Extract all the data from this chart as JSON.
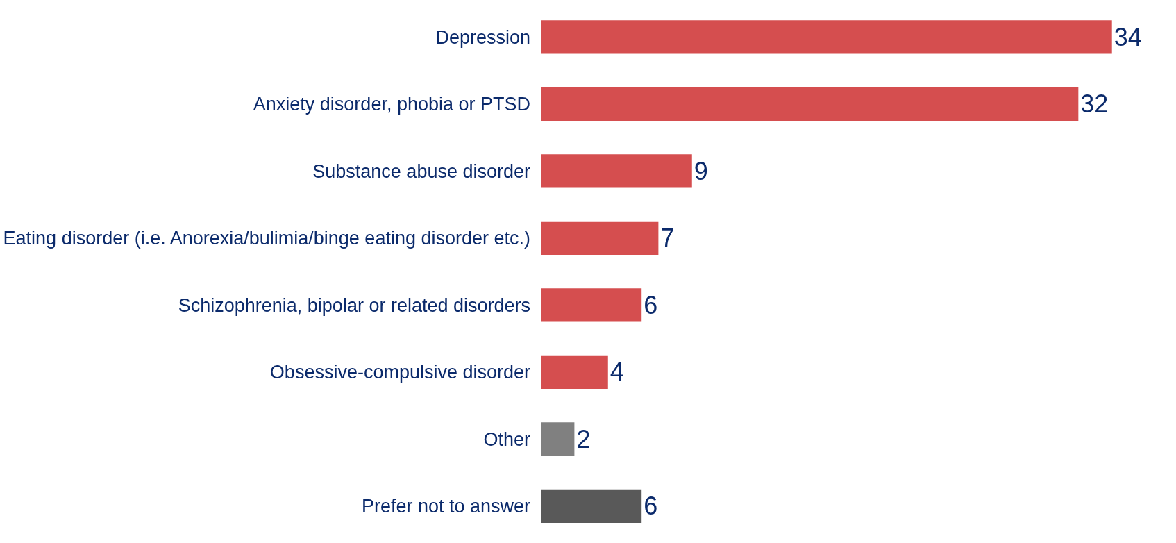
{
  "chart_data": {
    "type": "bar",
    "orientation": "horizontal",
    "categories": [
      "Depression",
      "Anxiety disorder, phobia or PTSD",
      "Substance abuse disorder",
      "Eating disorder (i.e. Anorexia/bulimia/binge eating disorder etc.)",
      "Schizophrenia, bipolar or related disorders",
      "Obsessive-compulsive disorder",
      "Other",
      "Prefer not to answer"
    ],
    "values": [
      34,
      32,
      9,
      7,
      6,
      4,
      2,
      6
    ],
    "colors": [
      "#d54e4f",
      "#d54e4f",
      "#d54e4f",
      "#d54e4f",
      "#d54e4f",
      "#d54e4f",
      "#808080",
      "#595959"
    ],
    "data_labels": true
  }
}
